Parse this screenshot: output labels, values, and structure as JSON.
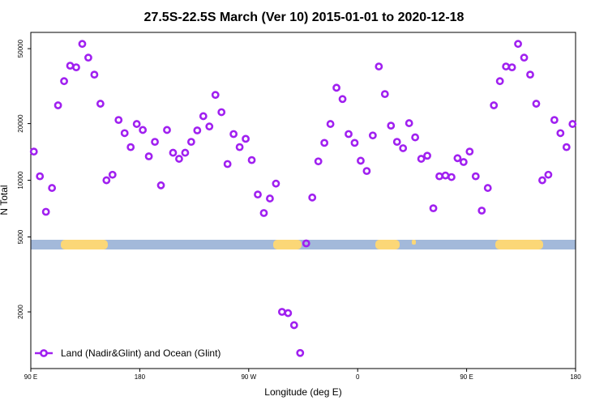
{
  "chart_data": {
    "type": "scatter",
    "title": "27.5S-22.5S March (Ver 10)   2015-01-01 to 2020-12-18",
    "x_label": "Longitude (deg E)",
    "y_label": "N Total",
    "ylog": true,
    "xlim": [
      90,
      540
    ],
    "ylim": [
      1000,
      61000
    ],
    "xticks": [
      {
        "value": 90,
        "label": "90 E"
      },
      {
        "value": 180,
        "label": "180"
      },
      {
        "value": 270,
        "label": "90 W"
      },
      {
        "value": 360,
        "label": "0"
      },
      {
        "value": 450,
        "label": "90 E"
      },
      {
        "value": 540,
        "label": "180"
      }
    ],
    "yticks": [
      2000,
      5000,
      10000,
      20000,
      50000
    ],
    "legend": "bottom-left",
    "series": [
      {
        "name": "Land (Nadir&Glint) and Ocean (Glint)",
        "color": "#a020f0",
        "x": [
          92.5,
          97.5,
          102.5,
          107.5,
          112.5,
          117.5,
          122.5,
          127.5,
          132.5,
          137.5,
          142.5,
          147.5,
          152.5,
          157.5,
          162.5,
          167.5,
          172.5,
          177.5,
          182.5,
          187.5,
          192.5,
          197.5,
          202.5,
          207.5,
          212.5,
          217.5,
          222.5,
          227.5,
          232.5,
          237.5,
          242.5,
          247.5,
          252.5,
          257.5,
          262.5,
          267.5,
          272.5,
          277.5,
          282.5,
          287.5,
          292.5,
          297.5,
          302.5,
          307.5,
          312.5,
          317.5,
          322.5,
          327.5,
          332.5,
          337.5,
          342.5,
          347.5,
          352.5,
          357.5,
          362.5,
          367.5,
          372.5,
          377.5,
          382.5,
          387.5,
          392.5,
          397.5,
          402.5,
          407.5,
          412.5,
          417.5,
          422.5,
          427.5,
          432.5,
          437.5,
          442.5,
          447.5,
          452.5,
          457.5,
          462.5,
          467.5,
          472.5,
          477.5,
          482.5,
          487.5,
          492.5,
          497.5,
          502.5,
          507.5,
          512.5,
          517.5,
          522.5,
          527.5,
          532.5,
          537.5
        ],
        "values": [
          14200,
          10500,
          6800,
          9100,
          25000,
          33600,
          40600,
          39800,
          53000,
          44800,
          36400,
          25500,
          10000,
          10700,
          20900,
          17800,
          15000,
          19900,
          18500,
          13400,
          16000,
          9400,
          18500,
          14000,
          13000,
          14000,
          16000,
          18400,
          21900,
          19300,
          28400,
          23000,
          12200,
          17600,
          15000,
          16600,
          12800,
          8400,
          6700,
          8000,
          9600,
          2000,
          1970,
          1700,
          1210,
          4620,
          8100,
          12600,
          15800,
          19900,
          31000,
          27000,
          17600,
          15800,
          12700,
          11200,
          17300,
          40200,
          28700,
          19500,
          16000,
          14800,
          20100,
          16900,
          13000,
          13500,
          7100,
          10500,
          10600,
          10400,
          13100,
          12500,
          14200,
          10500,
          6900,
          9100,
          25000,
          33600,
          40200,
          39800,
          53000,
          44800,
          36400,
          25500,
          10000,
          10700,
          20900,
          17800,
          15000,
          19900
        ]
      }
    ]
  }
}
